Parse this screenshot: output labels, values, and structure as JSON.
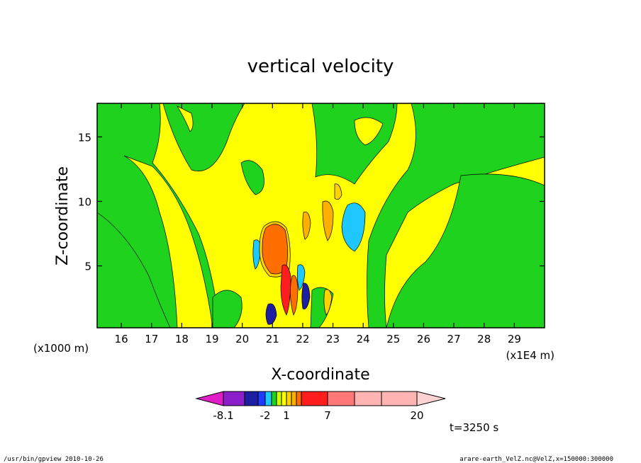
{
  "chart_data": {
    "type": "heatmap",
    "title": "vertical velocity",
    "xlabel": "X-coordinate",
    "ylabel": "Z-coordinate",
    "x_unit_left": "(x1000 m)",
    "x_unit_right": "(x1E4 m)",
    "xlim": [
      15.2,
      30.0
    ],
    "ylim": [
      0.2,
      17.6
    ],
    "x_ticks": [
      16,
      17,
      18,
      19,
      20,
      21,
      22,
      23,
      24,
      25,
      26,
      27,
      28,
      29
    ],
    "y_ticks": [
      5,
      10,
      15
    ],
    "colorbar": {
      "colors": [
        "#e01ec8",
        "#8a1ec8",
        "#1e1ea0",
        "#1e3cff",
        "#1ec8ff",
        "#1ed21e",
        "#cdff00",
        "#ffff00",
        "#ffd200",
        "#ffaf00",
        "#ff6e00",
        "#ff1e1e",
        "#ff7878",
        "#ffb4b4",
        "#ffd2d2"
      ],
      "tick_labels": [
        "-8.1",
        "-2",
        "1",
        "7",
        "20"
      ]
    },
    "time_label": "t=3250 s"
  },
  "footer": {
    "left": "/usr/bin/gpview   2010-10-26",
    "right": "arare-earth_VelZ.nc@VelZ,x=150000:300000"
  }
}
